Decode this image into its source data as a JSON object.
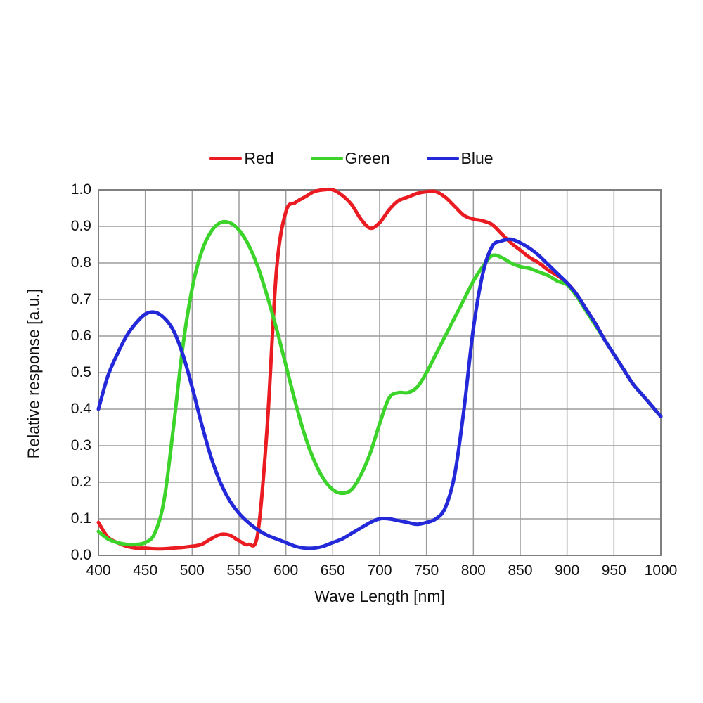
{
  "chart_data": {
    "type": "line",
    "title": "",
    "xlabel": "Wave Length [nm]",
    "ylabel": "Relative response [a.u.]",
    "xlim": [
      400,
      1000
    ],
    "ylim": [
      0,
      1.0
    ],
    "grid": true,
    "legend_position": "top",
    "grid_color": "#9c9c9c",
    "border_color": "#7f7f7f",
    "xticks": [
      400,
      450,
      500,
      550,
      600,
      650,
      700,
      750,
      800,
      850,
      900,
      950,
      1000
    ],
    "ytick_labels": [
      "0.0",
      "0.1",
      "0.2",
      "0.3",
      "0.4",
      "0.5",
      "0.6",
      "0.7",
      "0.8",
      "0.9",
      "1.0"
    ],
    "x": [
      400,
      410,
      420,
      430,
      440,
      450,
      460,
      470,
      480,
      490,
      500,
      510,
      520,
      530,
      540,
      550,
      560,
      570,
      580,
      590,
      600,
      610,
      620,
      630,
      640,
      650,
      660,
      670,
      680,
      690,
      700,
      710,
      720,
      730,
      740,
      750,
      760,
      770,
      780,
      790,
      800,
      810,
      820,
      830,
      840,
      850,
      860,
      870,
      880,
      890,
      900,
      910,
      920,
      930,
      940,
      950,
      960,
      970,
      980,
      990,
      1000
    ],
    "series": [
      {
        "name": "Red",
        "color": "#ea1c22",
        "values": [
          0.09,
          0.05,
          0.035,
          0.025,
          0.02,
          0.02,
          0.018,
          0.018,
          0.02,
          0.022,
          0.025,
          0.03,
          0.045,
          0.057,
          0.055,
          0.04,
          0.03,
          0.06,
          0.35,
          0.78,
          0.94,
          0.965,
          0.98,
          0.995,
          1.0,
          1.0,
          0.985,
          0.96,
          0.92,
          0.895,
          0.91,
          0.945,
          0.97,
          0.98,
          0.99,
          0.995,
          0.995,
          0.98,
          0.955,
          0.93,
          0.92,
          0.915,
          0.905,
          0.88,
          0.855,
          0.835,
          0.815,
          0.8,
          0.78,
          0.765,
          0.745,
          0.715,
          0.675,
          0.635,
          0.59,
          0.55,
          0.51,
          0.47,
          0.44,
          0.41,
          0.38
        ]
      },
      {
        "name": "Green",
        "color": "#3cd32a",
        "values": [
          0.065,
          0.045,
          0.035,
          0.03,
          0.03,
          0.035,
          0.06,
          0.15,
          0.35,
          0.57,
          0.73,
          0.83,
          0.885,
          0.91,
          0.91,
          0.89,
          0.85,
          0.79,
          0.71,
          0.62,
          0.52,
          0.42,
          0.33,
          0.26,
          0.21,
          0.18,
          0.17,
          0.18,
          0.22,
          0.28,
          0.36,
          0.43,
          0.445,
          0.445,
          0.46,
          0.5,
          0.55,
          0.6,
          0.65,
          0.7,
          0.75,
          0.79,
          0.82,
          0.815,
          0.8,
          0.79,
          0.785,
          0.775,
          0.765,
          0.75,
          0.74,
          0.71,
          0.67,
          0.63,
          0.59,
          0.55,
          0.51,
          0.47,
          0.44,
          0.41,
          0.38
        ]
      },
      {
        "name": "Blue",
        "color": "#2329d8",
        "values": [
          0.4,
          0.49,
          0.55,
          0.6,
          0.635,
          0.66,
          0.665,
          0.65,
          0.615,
          0.55,
          0.46,
          0.36,
          0.27,
          0.2,
          0.15,
          0.115,
          0.09,
          0.07,
          0.055,
          0.045,
          0.035,
          0.025,
          0.02,
          0.02,
          0.025,
          0.035,
          0.045,
          0.06,
          0.075,
          0.09,
          0.1,
          0.1,
          0.095,
          0.09,
          0.085,
          0.09,
          0.1,
          0.13,
          0.22,
          0.4,
          0.62,
          0.77,
          0.845,
          0.86,
          0.865,
          0.855,
          0.84,
          0.82,
          0.795,
          0.77,
          0.745,
          0.715,
          0.675,
          0.635,
          0.59,
          0.55,
          0.51,
          0.47,
          0.44,
          0.41,
          0.38
        ]
      }
    ]
  }
}
